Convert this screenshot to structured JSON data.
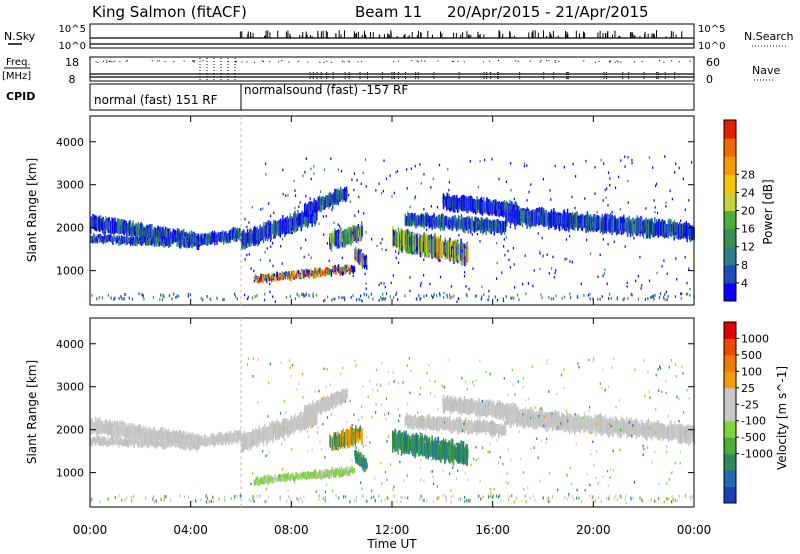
{
  "header": {
    "station": "King Salmon (fitACF)",
    "beam": "Beam 11",
    "date_range": "20/Apr/2015 - 21/Apr/2015"
  },
  "strip": {
    "nsky_label": "N.Sky",
    "nsky_ticks": [
      "10^5",
      "10^0"
    ],
    "nsearch_label": "N.Search",
    "nsearch_ticks": [
      "10^5",
      "10^0"
    ],
    "freq_label": "Freq.",
    "freq_unit": "[MHz]",
    "freq_ticks": [
      "18",
      "8"
    ],
    "nave_label": "Nave",
    "nave_ticks": [
      "60",
      "0"
    ],
    "cpid_label": "CPID",
    "cpid_modes": [
      "normal (fast) 151 RF",
      "normalsound (fast) -157 RF"
    ]
  },
  "chart_data": [
    {
      "type": "heatmap",
      "name": "power-panel",
      "ylabel": "Slant Range [km]",
      "yticks": [
        1000,
        2000,
        3000,
        4000
      ],
      "ylim": [
        200,
        4600
      ],
      "xlim": [
        0,
        24
      ],
      "colorbar": {
        "label": "Power [dB]",
        "ticks": [
          "4",
          "8",
          "12",
          "16",
          "20",
          "24",
          "28"
        ],
        "colors": [
          "#0a00ff",
          "#1c4fb6",
          "#2d7f8c",
          "#3f8f52",
          "#4cae3a",
          "#c8d23a",
          "#f7c400",
          "#f59a00",
          "#f06a00",
          "#e02000"
        ]
      }
    },
    {
      "type": "heatmap",
      "name": "velocity-panel",
      "ylabel": "Slant Range [km]",
      "yticks": [
        1000,
        2000,
        3000,
        4000
      ],
      "ylim": [
        200,
        4600
      ],
      "xlim": [
        0,
        24
      ],
      "colorbar": {
        "label": "Velocity [m s^-1]",
        "ticks": [
          "1000",
          "500",
          "100",
          "25",
          "-25",
          "-100",
          "-500",
          "-1000"
        ],
        "colors": [
          "#1c3fb0",
          "#1f6ab0",
          "#2e8a5a",
          "#4cae3a",
          "#7ed23a",
          "#c8c8c8",
          "#c8c8c8",
          "#f2a000",
          "#f07a00",
          "#ea4a00",
          "#e00000"
        ]
      }
    }
  ],
  "xaxis": {
    "label": "Time UT",
    "ticks": [
      "00:00",
      "04:00",
      "08:00",
      "12:00",
      "16:00",
      "20:00",
      "00:00"
    ]
  }
}
